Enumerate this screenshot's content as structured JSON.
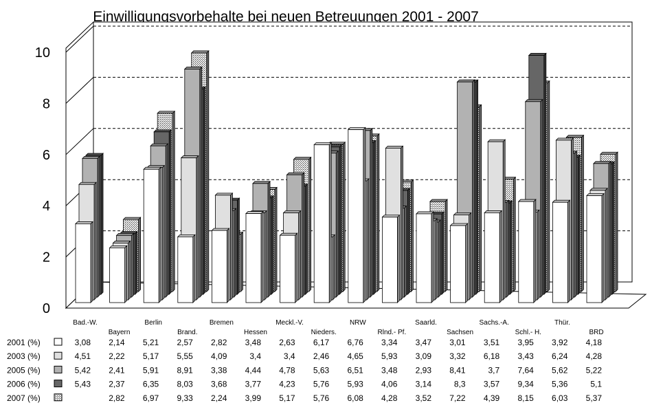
{
  "chart_data": {
    "type": "bar",
    "title": "Einwilligungsvorbehalte bei neuen Betreuungen 2001 - 2007",
    "categories": [
      "Bad.-W.",
      "Bayern",
      "Berlin",
      "Brand.",
      "Bremen",
      "Hessen",
      "Meckl.-V.",
      "Nieders.",
      "NRW",
      "Rlnd.- Pf.",
      "Saarld.",
      "Sachsen",
      "Sachs.-A.",
      "Schl.- H.",
      "Thür.",
      "BRD"
    ],
    "y_ticks": [
      "0",
      "2",
      "4",
      "6",
      "8",
      "10"
    ],
    "ylim": [
      0,
      10
    ],
    "grid": true,
    "legend_placement": "data table below chart",
    "series": [
      {
        "name": "2001 (%)",
        "values": [
          "3,08",
          "2,14",
          "5,21",
          "2,57",
          "2,82",
          "3,48",
          "2,63",
          "6,17",
          "6,76",
          "3,34",
          "3,47",
          "3,01",
          "3,51",
          "3,95",
          "3,92",
          "4,18"
        ],
        "color": "#ffffff"
      },
      {
        "name": "2003 (%)",
        "values": [
          "4,51",
          "2,22",
          "5,17",
          "5,55",
          "4,09",
          "3,4",
          "3,4",
          "2,46",
          "4,65",
          "5,93",
          "3,09",
          "3,32",
          "6,18",
          "3,43",
          "6,24",
          "4,28"
        ],
        "color": "#e0e0e0"
      },
      {
        "name": "2005 (%)",
        "values": [
          "5,42",
          "2,41",
          "5,91",
          "8,91",
          "3,38",
          "4,44",
          "4,78",
          "5,63",
          "6,51",
          "3,48",
          "2,93",
          "8,41",
          "3,7",
          "7,64",
          "5,62",
          "5,22"
        ],
        "color": "#b2b2b2"
      },
      {
        "name": "2006 (%)",
        "values": [
          "5,43",
          "2,37",
          "6,35",
          "8,03",
          "3,68",
          "3,77",
          "4,23",
          "5,76",
          "5,93",
          "4,06",
          "3,14",
          "8,3",
          "3,57",
          "9,34",
          "5,36",
          "5,1"
        ],
        "color": "#666666"
      },
      {
        "name": "2007 (%)",
        "values": [
          "",
          "2,82",
          "6,97",
          "9,33",
          "2,24",
          "3,99",
          "5,17",
          "5,76",
          "6,08",
          "4,28",
          "3,52",
          "7,22",
          "4,39",
          "8,15",
          "6,03",
          "5,37"
        ],
        "color": "#cfcfcf",
        "pattern": "dotted-grid"
      }
    ]
  }
}
